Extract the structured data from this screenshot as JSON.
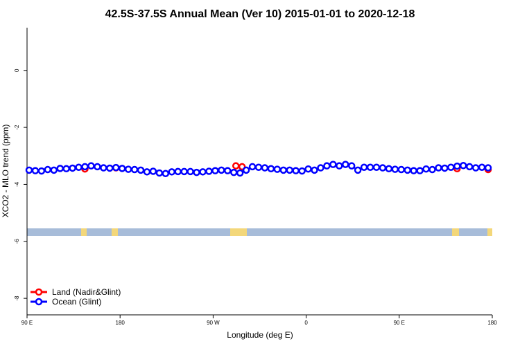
{
  "chart_data": {
    "type": "line",
    "title": "42.5S-37.5S Annual Mean (Ver 10)   2015-01-01 to 2020-12-18",
    "x_label": "Longitude (deg E)",
    "y_label": "XCO2 - MLO trend (ppm)",
    "xlim": [
      90,
      540
    ],
    "ylim": [
      -8.58,
      1.5
    ],
    "xticks": [
      {
        "value": 90,
        "label": "90 E"
      },
      180,
      {
        "value": 270,
        "label": "90 W"
      },
      {
        "value": 360,
        "label": "0"
      },
      {
        "value": 450,
        "label": "90 E"
      },
      {
        "value": 540,
        "label": "180"
      }
    ],
    "yticks": [
      0,
      -2,
      -4,
      -6,
      -8
    ],
    "legend": "bottom-left",
    "series": [
      {
        "name": "Land (Nadir&Glint)",
        "color": "#ff0000",
        "x": [
          146,
          176,
          292,
          298,
          506,
          536
        ],
        "values": [
          -3.46,
          -3.42,
          -3.35,
          -3.38,
          -3.45,
          -3.48
        ]
      },
      {
        "name": "Ocean (Glint)",
        "color": "#0000ff",
        "x": [
          92,
          98,
          104,
          110,
          116,
          122,
          128,
          134,
          140,
          146,
          152,
          158,
          164,
          170,
          176,
          182,
          188,
          194,
          200,
          206,
          212,
          218,
          224,
          230,
          236,
          242,
          248,
          254,
          260,
          266,
          272,
          278,
          284,
          290,
          296,
          302,
          308,
          314,
          320,
          326,
          332,
          338,
          344,
          350,
          356,
          362,
          368,
          374,
          380,
          386,
          392,
          398,
          404,
          410,
          416,
          422,
          428,
          434,
          440,
          446,
          452,
          458,
          464,
          470,
          476,
          482,
          488,
          494,
          500,
          506,
          512,
          518,
          524,
          530,
          536
        ],
        "values": [
          -3.5,
          -3.52,
          -3.53,
          -3.48,
          -3.5,
          -3.44,
          -3.45,
          -3.43,
          -3.4,
          -3.38,
          -3.35,
          -3.38,
          -3.42,
          -3.43,
          -3.41,
          -3.44,
          -3.47,
          -3.48,
          -3.5,
          -3.56,
          -3.54,
          -3.6,
          -3.62,
          -3.56,
          -3.55,
          -3.55,
          -3.55,
          -3.58,
          -3.56,
          -3.54,
          -3.52,
          -3.5,
          -3.52,
          -3.58,
          -3.6,
          -3.5,
          -3.38,
          -3.4,
          -3.42,
          -3.45,
          -3.47,
          -3.5,
          -3.5,
          -3.52,
          -3.53,
          -3.46,
          -3.5,
          -3.42,
          -3.35,
          -3.3,
          -3.35,
          -3.3,
          -3.35,
          -3.5,
          -3.4,
          -3.4,
          -3.4,
          -3.42,
          -3.45,
          -3.47,
          -3.48,
          -3.5,
          -3.52,
          -3.52,
          -3.46,
          -3.48,
          -3.42,
          -3.43,
          -3.4,
          -3.36,
          -3.34,
          -3.38,
          -3.42,
          -3.4,
          -3.42
        ]
      }
    ]
  }
}
